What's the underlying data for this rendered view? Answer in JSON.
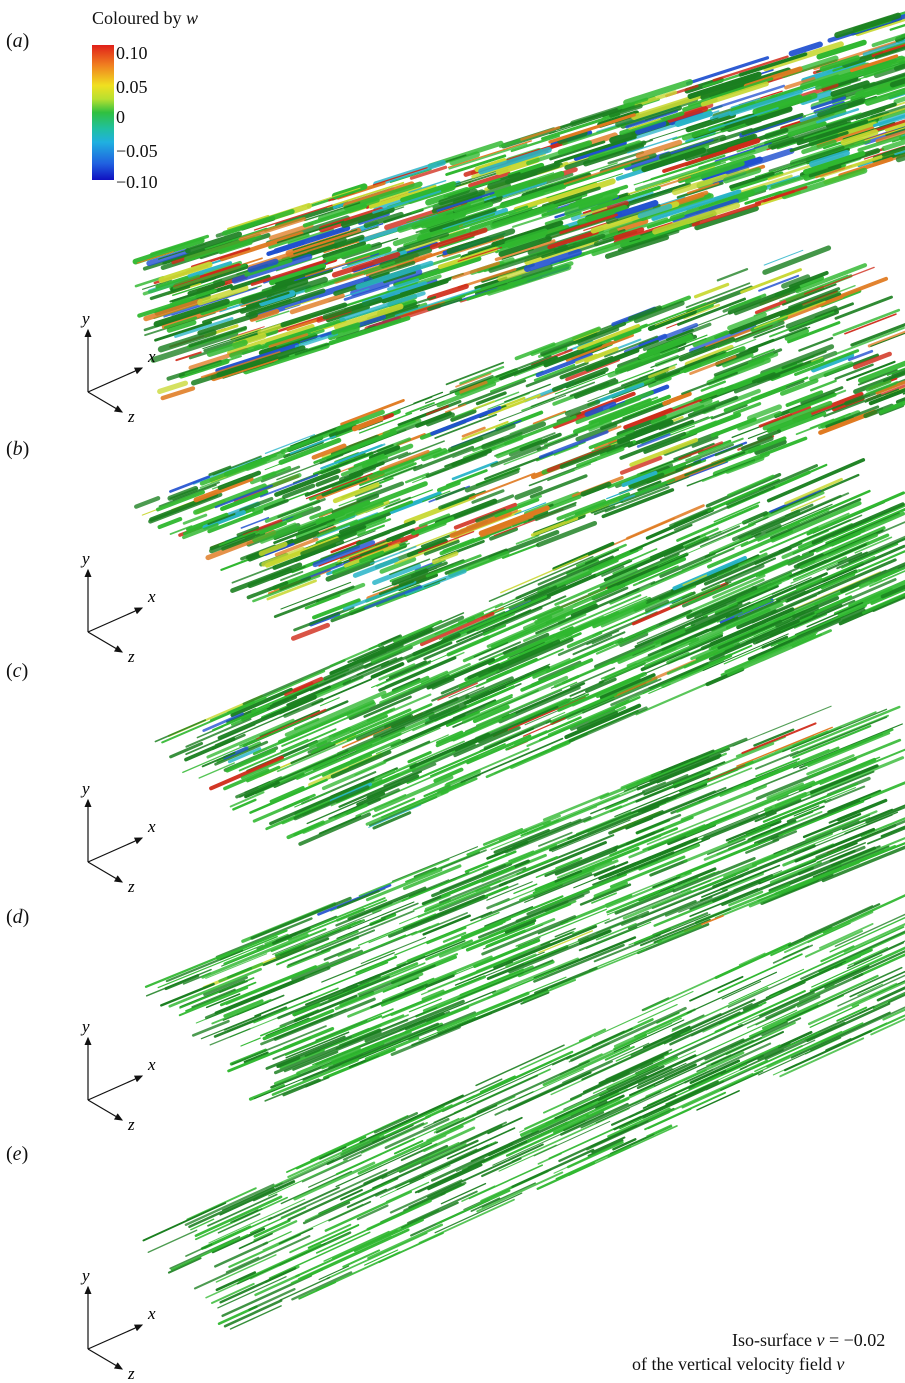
{
  "colorbar": {
    "title_prefix": "Coloured by ",
    "title_var": "w",
    "ticks": [
      "0.10",
      "0.05",
      "0",
      "−0.05",
      "−0.10"
    ]
  },
  "panels": [
    {
      "label_open": "(",
      "label_letter": "a",
      "label_close": ")"
    },
    {
      "label_open": "(",
      "label_letter": "b",
      "label_close": ")"
    },
    {
      "label_open": "(",
      "label_letter": "c",
      "label_close": ")"
    },
    {
      "label_open": "(",
      "label_letter": "d",
      "label_close": ")"
    },
    {
      "label_open": "(",
      "label_letter": "e",
      "label_close": ")"
    }
  ],
  "axes": {
    "y": "y",
    "x": "x",
    "z": "z"
  },
  "annotation": {
    "line1_prefix": "Iso-surface ",
    "line1_var": "v",
    "line1_suffix": " = −0.02",
    "line2_prefix": "of the vertical velocity field ",
    "line2_var": "v"
  },
  "colors": {
    "green": "#2fb82f",
    "dark_green": "#1a7f1f",
    "yellow": "#c8d830",
    "orange": "#e07a20",
    "red": "#d02a18",
    "cyan": "#28b4c8",
    "blue": "#2050d0"
  }
}
